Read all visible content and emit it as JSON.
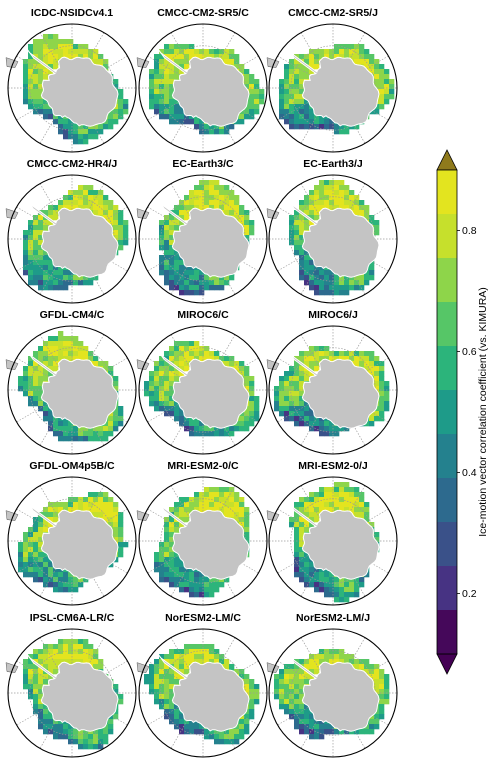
{
  "panels": [
    {
      "title": "ICDC-NSIDCv4.1"
    },
    {
      "title": "CMCC-CM2-SR5/C"
    },
    {
      "title": "CMCC-CM2-SR5/J"
    },
    {
      "title": "CMCC-CM2-HR4/J"
    },
    {
      "title": "EC-Earth3/C"
    },
    {
      "title": "EC-Earth3/J"
    },
    {
      "title": "GFDL-CM4/C"
    },
    {
      "title": "MIROC6/C"
    },
    {
      "title": "MIROC6/J"
    },
    {
      "title": "GFDL-OM4p5B/C"
    },
    {
      "title": "MRI-ESM2-0/C"
    },
    {
      "title": "MRI-ESM2-0/J"
    },
    {
      "title": "IPSL-CM6A-LR/C"
    },
    {
      "title": "NorESM2-LM/C"
    },
    {
      "title": "NorESM2-LM/J"
    }
  ],
  "colorbar": {
    "label": "Ice-motion vector correlation coefficient (vs. KIMURA)",
    "ticks": [
      "0.2",
      "0.4",
      "0.6",
      "0.8"
    ],
    "tick_values": [
      0.2,
      0.4,
      0.6,
      0.8
    ],
    "range": [
      0.1,
      0.9
    ],
    "extend": "both",
    "colors": [
      "#45085a",
      "#473383",
      "#3a5189",
      "#2d6a8e",
      "#24818e",
      "#1e9b89",
      "#2cb47b",
      "#56c667",
      "#8ed54a",
      "#c6e02c",
      "#e3e41f"
    ],
    "under_color": "#440154",
    "over_color": "#8f7a1c"
  },
  "colors": {
    "land": "#c4c4c4",
    "ocean": "#ffffff",
    "graticule": "#9a9a9a"
  }
}
